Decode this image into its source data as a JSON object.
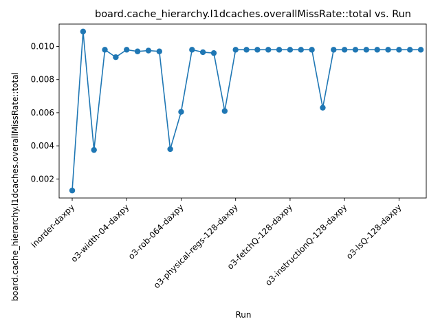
{
  "chart_data": {
    "type": "line",
    "title": "board.cache_hierarchy.l1dcaches.overallMissRate::total vs. Run",
    "xlabel": "Run",
    "ylabel": "board.cache_hierarchy.l1dcaches.overallMissRate::total",
    "x_tick_labels": [
      "inorder-daxpy",
      "o3-width-04-daxpy",
      "o3-rob-064-daxpy",
      "o3-physical-regs-128-daxpy",
      "o3-fetchQ-128-daxpy",
      "o3-instructionQ-128-daxpy",
      "o3-lsQ-128-daxpy"
    ],
    "x_tick_indices": [
      0,
      5,
      10,
      15,
      20,
      25,
      30
    ],
    "y_ticks": [
      0.002,
      0.004,
      0.006,
      0.008,
      0.01
    ],
    "y_tick_labels": [
      "0.002",
      "0.004",
      "0.006",
      "0.008",
      "0.010"
    ],
    "ylim": [
      0.00085,
      0.01135
    ],
    "xlim": [
      -1.2,
      32.5
    ],
    "grid": false,
    "series": [
      {
        "color": "#1f77b4",
        "marker": "circle",
        "values": [
          0.0013,
          0.0109,
          0.00375,
          0.0098,
          0.00935,
          0.0098,
          0.0097,
          0.00975,
          0.0097,
          0.0038,
          0.00605,
          0.0098,
          0.00965,
          0.0096,
          0.0061,
          0.0098,
          0.0098,
          0.0098,
          0.0098,
          0.0098,
          0.0098,
          0.0098,
          0.0098,
          0.0063,
          0.0098,
          0.0098,
          0.0098,
          0.0098,
          0.0098,
          0.0098,
          0.0098,
          0.0098,
          0.0098
        ]
      }
    ]
  }
}
